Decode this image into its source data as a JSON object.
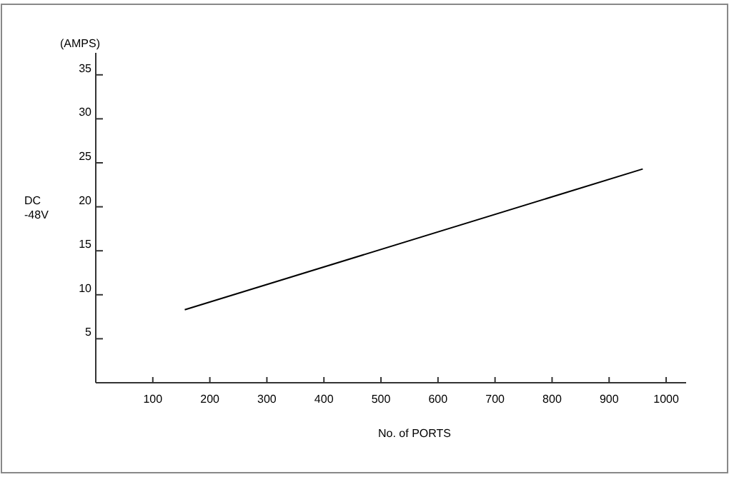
{
  "chart_data": {
    "type": "line",
    "xlabel": "No. of PORTS",
    "ylabel": "DC -48V",
    "annotations": [
      "(AMPS)"
    ],
    "x": [
      156,
      959
    ],
    "series": [
      {
        "color": "#000000",
        "values": [
          8.3,
          24.3
        ]
      }
    ],
    "xlim": [
      0,
      1035
    ],
    "xticks": [
      100,
      200,
      300,
      400,
      500,
      600,
      700,
      800,
      900,
      1000
    ],
    "ylim": [
      0,
      37.5
    ],
    "yticks": [
      5,
      10,
      15,
      20,
      25,
      30,
      35
    ],
    "grid": false
  }
}
